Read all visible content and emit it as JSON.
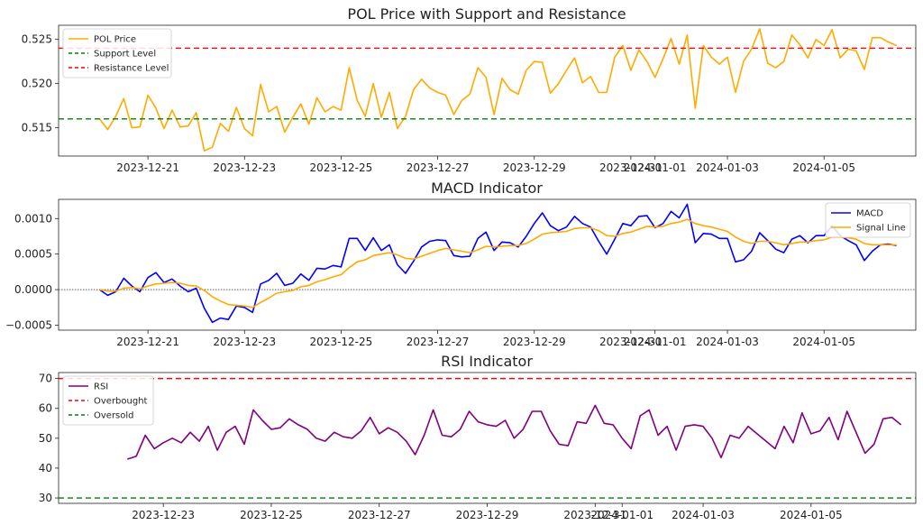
{
  "chart_data": [
    {
      "type": "line",
      "title": "POL Price with Support and Resistance",
      "xlabel": "",
      "ylabel": "",
      "x_tick_labels": [
        "2023-12-21",
        "2023-12-23",
        "2023-12-25",
        "2023-12-27",
        "2023-12-29",
        "2023-12-31",
        "2024-01-01",
        "2024-01-03",
        "2024-01-05"
      ],
      "x_tick_days": [
        1,
        3,
        5,
        7,
        9,
        11,
        11.5,
        13,
        15
      ],
      "x_range_days": [
        -0.85,
        16.9
      ],
      "ylim": [
        0.5118,
        0.5266
      ],
      "y_ticks": [
        0.515,
        0.52,
        0.525
      ],
      "y_tick_labels": [
        "0.515",
        "0.520",
        "0.525"
      ],
      "legend_position": "top-left",
      "series": [
        {
          "name": "POL Price",
          "color": "#ffaa00",
          "step_hours": 4,
          "start_day": 0,
          "values": [
            0.516,
            0.5148,
            0.5163,
            0.5183,
            0.515,
            0.5151,
            0.5187,
            0.5172,
            0.5149,
            0.517,
            0.5151,
            0.5152,
            0.5167,
            0.5124,
            0.5128,
            0.5155,
            0.5146,
            0.5173,
            0.5149,
            0.5141,
            0.5199,
            0.5168,
            0.5174,
            0.5145,
            0.5162,
            0.5177,
            0.5154,
            0.5184,
            0.5168,
            0.5174,
            0.517,
            0.5218,
            0.5181,
            0.5163,
            0.52,
            0.5162,
            0.519,
            0.5149,
            0.5163,
            0.5193,
            0.5205,
            0.5195,
            0.519,
            0.5187,
            0.5165,
            0.5181,
            0.5188,
            0.5218,
            0.5207,
            0.5165,
            0.5206,
            0.5193,
            0.5188,
            0.5215,
            0.5225,
            0.5224,
            0.5189,
            0.52,
            0.5215,
            0.5229,
            0.5201,
            0.5208,
            0.519,
            0.519,
            0.523,
            0.5243,
            0.5215,
            0.5238,
            0.5225,
            0.5207,
            0.5228,
            0.5251,
            0.5222,
            0.5255,
            0.5172,
            0.5243,
            0.523,
            0.5222,
            0.523,
            0.519,
            0.5225,
            0.5239,
            0.5262,
            0.5223,
            0.5218,
            0.5225,
            0.5255,
            0.5244,
            0.5229,
            0.525,
            0.5243,
            0.5261,
            0.5229,
            0.5239,
            0.5237,
            0.5216,
            0.5252,
            0.5252,
            0.5247,
            0.5243
          ]
        },
        {
          "name": "Support Level",
          "color": "#008000",
          "dashed": true,
          "constant": 0.516
        },
        {
          "name": "Resistance Level",
          "color": "#ff0000",
          "dashed": true,
          "constant": 0.524
        }
      ]
    },
    {
      "type": "line",
      "title": "MACD Indicator",
      "xlabel": "",
      "ylabel": "",
      "x_tick_labels": [
        "2023-12-21",
        "2023-12-23",
        "2023-12-25",
        "2023-12-27",
        "2023-12-29",
        "2023-12-31",
        "2024-01-01",
        "2024-01-03",
        "2024-01-05"
      ],
      "x_tick_days": [
        1,
        3,
        5,
        7,
        9,
        11,
        11.5,
        13,
        15
      ],
      "x_range_days": [
        -0.85,
        16.9
      ],
      "ylim": [
        -0.00057,
        0.00127
      ],
      "y_ticks": [
        -0.0005,
        0.0,
        0.0005,
        0.001
      ],
      "y_tick_labels": [
        "−0.0005",
        "0.0000",
        "0.0005",
        "0.0010"
      ],
      "zero_line": 0.0,
      "legend_position": "top-right",
      "series": [
        {
          "name": "MACD",
          "color": "#0000ff",
          "step_hours": 4,
          "start_day": 0,
          "values": [
            0.0,
            -8e-05,
            -3e-05,
            0.00016,
            5e-05,
            -3e-05,
            0.00017,
            0.00024,
            0.0001,
            0.00015,
            5e-05,
            -3e-05,
            2e-05,
            -0.00026,
            -0.00046,
            -0.0004,
            -0.00042,
            -0.00023,
            -0.00025,
            -0.00032,
            8e-05,
            0.00013,
            0.00023,
            6e-05,
            9e-05,
            0.00022,
            0.00013,
            0.0003,
            0.00029,
            0.00034,
            0.00032,
            0.00072,
            0.00072,
            0.00055,
            0.00073,
            0.00055,
            0.00063,
            0.00035,
            0.00023,
            0.0004,
            0.0006,
            0.00068,
            0.0007,
            0.00069,
            0.00048,
            0.00046,
            0.00047,
            0.00072,
            0.00081,
            0.00055,
            0.00067,
            0.00066,
            0.0006,
            0.00075,
            0.00093,
            0.00108,
            0.0009,
            0.00083,
            0.00088,
            0.00103,
            0.00093,
            0.00088,
            0.00068,
            0.0005,
            0.00071,
            0.00093,
            0.0009,
            0.00103,
            0.00104,
            0.00087,
            0.00093,
            0.0011,
            0.00101,
            0.0012,
            0.00066,
            0.00079,
            0.00078,
            0.00072,
            0.00072,
            0.00039,
            0.00042,
            0.00054,
            0.0008,
            0.00069,
            0.00057,
            0.00052,
            0.00071,
            0.00076,
            0.00066,
            0.00076,
            0.00076,
            0.0009,
            0.00076,
            0.00069,
            0.00063,
            0.00041,
            0.00054,
            0.00063,
            0.00064,
            0.00062
          ]
        },
        {
          "name": "Signal Line",
          "color": "#ffaa00",
          "step_hours": 4,
          "start_day": 0,
          "values": [
            0.0,
            -2e-05,
            -2e-05,
            2e-05,
            3e-05,
            1e-05,
            5e-05,
            8e-05,
            9e-05,
            0.0001,
            9e-05,
            6e-05,
            5e-05,
            -1e-05,
            -0.0001,
            -0.00016,
            -0.00021,
            -0.00022,
            -0.00023,
            -0.00025,
            -0.00018,
            -0.00012,
            -5e-05,
            -3e-05,
            -1e-05,
            4e-05,
            6e-05,
            0.00011,
            0.00014,
            0.00018,
            0.00021,
            0.00031,
            0.00039,
            0.00042,
            0.00048,
            0.0005,
            0.00052,
            0.00049,
            0.00044,
            0.00043,
            0.00047,
            0.00051,
            0.00055,
            0.00058,
            0.00056,
            0.00054,
            0.00052,
            0.00056,
            0.00061,
            0.0006,
            0.00061,
            0.00062,
            0.00062,
            0.00065,
            0.00071,
            0.00078,
            0.0008,
            0.00081,
            0.00082,
            0.00086,
            0.00087,
            0.00087,
            0.00083,
            0.00076,
            0.00075,
            0.00079,
            0.00081,
            0.00085,
            0.00089,
            0.00088,
            0.00089,
            0.00093,
            0.00095,
            0.00099,
            0.00093,
            0.0009,
            0.00088,
            0.00085,
            0.00082,
            0.00074,
            0.00068,
            0.00065,
            0.00068,
            0.00068,
            0.00066,
            0.00063,
            0.00065,
            0.00067,
            0.00067,
            0.00069,
            0.0007,
            0.00074,
            0.00074,
            0.00073,
            0.00071,
            0.00065,
            0.00063,
            0.00063,
            0.00063,
            0.00063
          ]
        }
      ]
    },
    {
      "type": "line",
      "title": "RSI Indicator",
      "xlabel": "",
      "ylabel": "",
      "x_tick_labels": [
        "2023-12-23",
        "2023-12-25",
        "2023-12-27",
        "2023-12-29",
        "2023-12-31",
        "2024-01-01",
        "2024-01-03",
        "2024-01-05"
      ],
      "x_tick_days": [
        3,
        5,
        7,
        9,
        11,
        11.5,
        13,
        15
      ],
      "x_range_days": [
        1.06,
        16.94
      ],
      "ylim": [
        28.2,
        72.0
      ],
      "y_ticks": [
        30,
        40,
        50,
        60,
        70
      ],
      "y_tick_labels": [
        "30",
        "40",
        "50",
        "60",
        "70"
      ],
      "legend_position": "top-left",
      "series": [
        {
          "name": "RSI",
          "color": "#800080",
          "step_hours": 4,
          "start_day": 2.3333,
          "values": [
            43,
            44,
            51,
            46.5,
            48.5,
            50,
            48.5,
            52,
            49,
            54,
            46,
            52,
            54,
            48,
            59.5,
            56,
            53,
            53.5,
            56.5,
            54.5,
            53,
            50,
            49,
            52,
            50.5,
            50,
            52.5,
            57,
            51.5,
            53.5,
            52,
            49,
            44.5,
            51,
            59.5,
            51,
            50.5,
            53,
            59,
            55.5,
            54.5,
            54,
            56,
            50,
            53,
            59,
            59,
            52.5,
            48,
            47.5,
            55.5,
            55,
            61,
            55,
            54.5,
            50,
            46.5,
            57.5,
            59.5,
            51,
            54,
            46,
            54,
            54.5,
            54,
            50,
            43.5,
            51,
            50,
            54,
            51.5,
            49,
            46.5,
            54,
            48.5,
            58.5,
            51.5,
            52.5,
            57,
            49.5,
            59,
            52,
            45,
            48,
            56.5,
            57,
            54.5
          ]
        },
        {
          "name": "Overbought",
          "color": "#ff0000",
          "dashed": true,
          "constant": 70
        },
        {
          "name": "Oversold",
          "color": "#008000",
          "dashed": true,
          "constant": 30
        }
      ]
    }
  ]
}
